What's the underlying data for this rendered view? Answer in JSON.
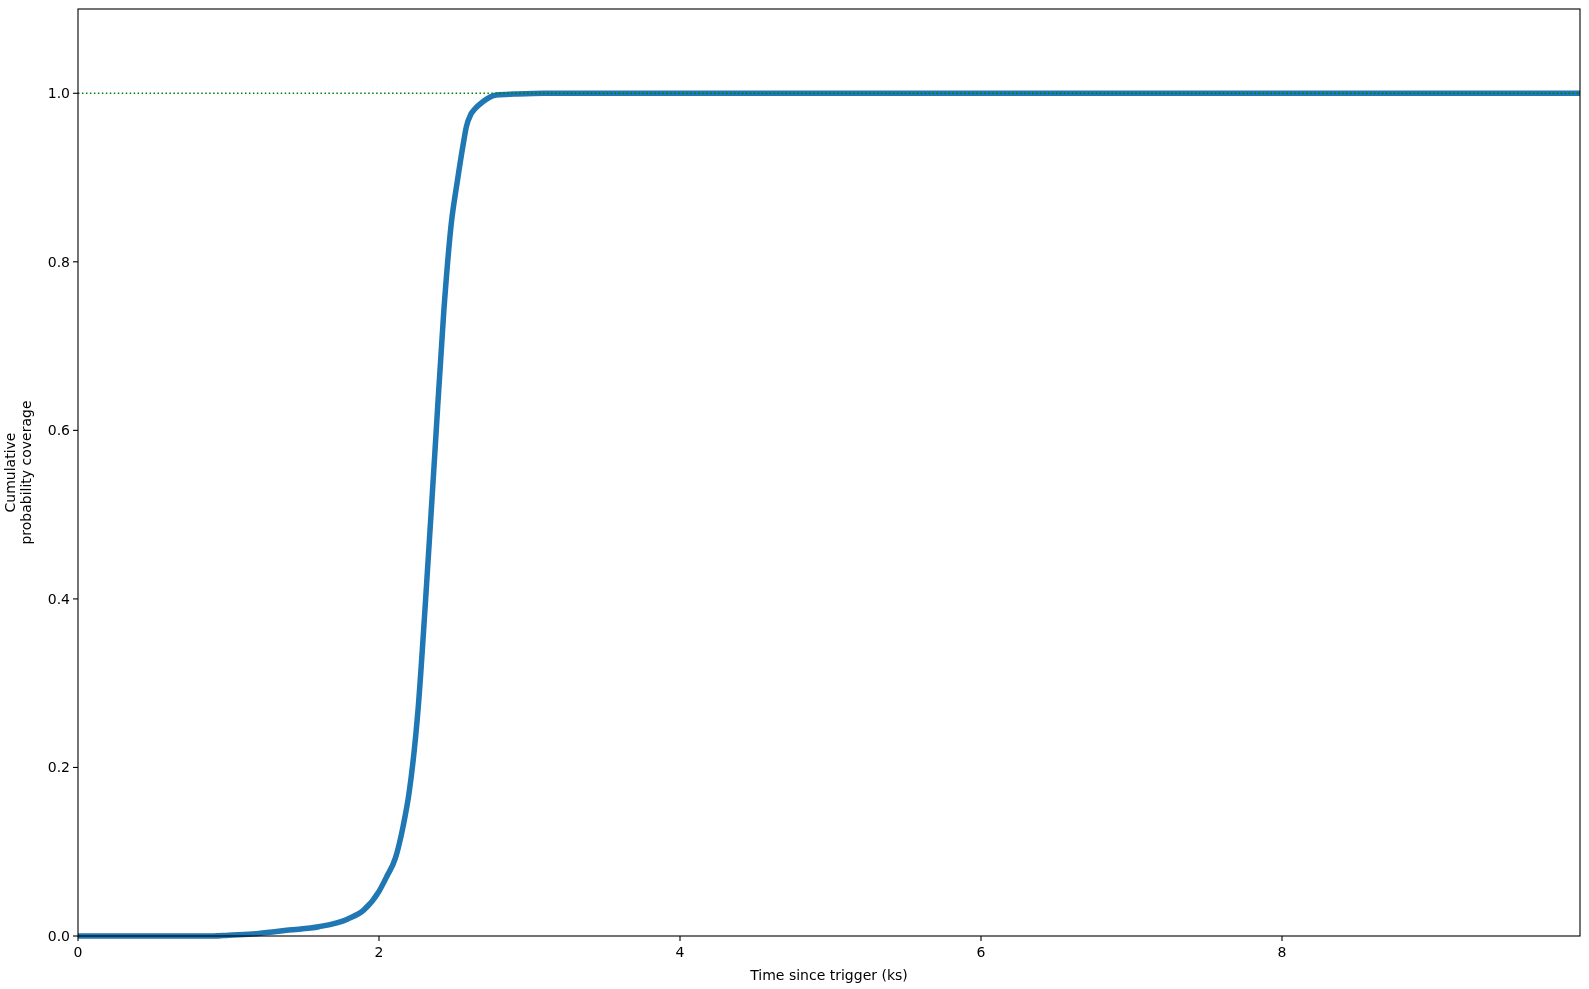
{
  "chart_data": {
    "type": "line",
    "xlabel": "Time since trigger (ks)",
    "ylabel": "Cumulative\nprobability coverage",
    "x": [
      0,
      0.5,
      0.9,
      1.0,
      1.2,
      1.4,
      1.6,
      1.79,
      1.9,
      2.0,
      2.05,
      2.11,
      2.16,
      2.2,
      2.26,
      2.31,
      2.37,
      2.43,
      2.48,
      2.52,
      2.56,
      2.58,
      2.61,
      2.635,
      2.69,
      2.78,
      2.9,
      3.1,
      5,
      8,
      9.98
    ],
    "series": [
      {
        "color": "#1f77b4",
        "values": [
          0,
          0,
          0,
          0.001,
          0.003,
          0.007,
          0.011,
          0.02,
          0.031,
          0.053,
          0.07,
          0.093,
          0.13,
          0.17,
          0.27,
          0.4,
          0.57,
          0.74,
          0.845,
          0.895,
          0.94,
          0.96,
          0.975,
          0.981,
          0.99,
          0.998,
          0.999,
          1,
          1,
          1,
          1
        ]
      }
    ],
    "xlim": [
      0,
      9.98
    ],
    "ylim": [
      0,
      1.1
    ],
    "xticks": [
      0,
      2,
      4,
      6,
      8
    ],
    "yticks": [
      {
        "value": 0,
        "label": "0.0"
      },
      0.2,
      0.4,
      0.6,
      0.8,
      {
        "value": 1,
        "label": "1.0"
      }
    ],
    "ref_lines": [
      {
        "axis": "y",
        "value": 1,
        "color": "#008000",
        "line_style": "dotted"
      }
    ]
  }
}
